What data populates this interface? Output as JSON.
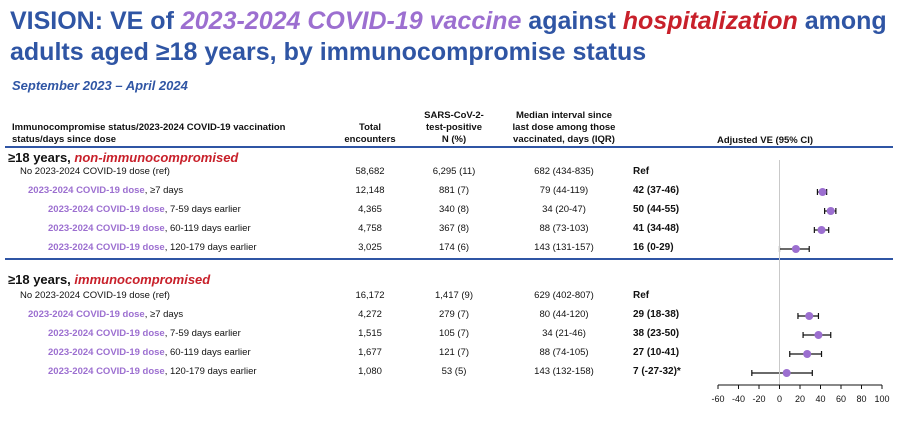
{
  "title": {
    "part1": "VISION: VE of ",
    "part2": "2023-2024 COVID-19 vaccine",
    "part3": " against ",
    "part4": "hospitalization",
    "part5": " among adults aged ≥18 years, by immunocompromise status"
  },
  "subtitle": "September 2023 – April 2024",
  "headers": {
    "status_line1": "Immunocompromise status/2023-2024 COVID-19 vaccination",
    "status_line2": "status/days since dose",
    "total_line1": "Total",
    "total_line2": "encounters",
    "pos_line1": "SARS-CoV-2-",
    "pos_line2": "test-positive",
    "pos_line3": "N (%)",
    "med_line1": "Median interval since",
    "med_line2": "last dose among those",
    "med_line3": "vaccinated, days (IQR)",
    "ve": "Adjusted VE (95% CI)"
  },
  "colors": {
    "blue": "#2f55a4",
    "purple": "#9c6fd0",
    "red": "#c8202a"
  },
  "chart_data": {
    "type": "forest",
    "title": "Adjusted VE (95% CI)",
    "xlim": [
      -60,
      100
    ],
    "xticks": [
      -60,
      -40,
      -20,
      0,
      20,
      40,
      60,
      80,
      100
    ],
    "tick_labels": [
      "-60",
      "-40",
      "-20",
      "0",
      "20",
      "40",
      "60",
      "80",
      "100"
    ],
    "groups": [
      {
        "label_prefix": "≥18 years, ",
        "label_tag": "non-immunocompromised",
        "rows": [
          {
            "dose": "",
            "label": "No 2023-2024 COVID-19 dose (ref)",
            "indent": 0,
            "total": "58,682",
            "pos": "6,295 (11)",
            "median": "682 (434-835)",
            "ve_text": "Ref",
            "ve": null,
            "lo": null,
            "hi": null
          },
          {
            "dose": "2023-2024 COVID-19 dose",
            "label": ", ≥7 days",
            "indent": 1,
            "total": "12,148",
            "pos": "881 (7)",
            "median": "79 (44-119)",
            "ve_text": "42 (37-46)",
            "ve": 42,
            "lo": 37,
            "hi": 46
          },
          {
            "dose": "2023-2024 COVID-19 dose",
            "label": ", 7-59 days earlier",
            "indent": 2,
            "total": "4,365",
            "pos": "340 (8)",
            "median": "34 (20-47)",
            "ve_text": "50 (44-55)",
            "ve": 50,
            "lo": 44,
            "hi": 55
          },
          {
            "dose": "2023-2024 COVID-19 dose",
            "label": ", 60-119 days earlier",
            "indent": 2,
            "total": "4,758",
            "pos": "367 (8)",
            "median": "88 (73-103)",
            "ve_text": "41 (34-48)",
            "ve": 41,
            "lo": 34,
            "hi": 48
          },
          {
            "dose": "2023-2024 COVID-19 dose",
            "label": ", 120-179 days earlier",
            "indent": 2,
            "total": "3,025",
            "pos": "174 (6)",
            "median": "143 (131-157)",
            "ve_text": "16 (0-29)",
            "ve": 16,
            "lo": 0,
            "hi": 29
          }
        ]
      },
      {
        "label_prefix": "≥18 years, ",
        "label_tag": "immunocompromised",
        "rows": [
          {
            "dose": "",
            "label": "No 2023-2024 COVID-19 dose (ref)",
            "indent": 0,
            "total": "16,172",
            "pos": "1,417 (9)",
            "median": "629 (402-807)",
            "ve_text": "Ref",
            "ve": null,
            "lo": null,
            "hi": null
          },
          {
            "dose": "2023-2024 COVID-19 dose",
            "label": ", ≥7 days",
            "indent": 1,
            "total": "4,272",
            "pos": "279 (7)",
            "median": "80 (44-120)",
            "ve_text": "29 (18-38)",
            "ve": 29,
            "lo": 18,
            "hi": 38
          },
          {
            "dose": "2023-2024 COVID-19 dose",
            "label": ", 7-59 days earlier",
            "indent": 2,
            "total": "1,515",
            "pos": "105 (7)",
            "median": "34 (21-46)",
            "ve_text": "38 (23-50)",
            "ve": 38,
            "lo": 23,
            "hi": 50
          },
          {
            "dose": "2023-2024 COVID-19 dose",
            "label": ", 60-119 days earlier",
            "indent": 2,
            "total": "1,677",
            "pos": "121 (7)",
            "median": "88 (74-105)",
            "ve_text": "27 (10-41)",
            "ve": 27,
            "lo": 10,
            "hi": 41
          },
          {
            "dose": "2023-2024 COVID-19 dose",
            "label": ", 120-179 days earlier",
            "indent": 2,
            "total": "1,080",
            "pos": "53 (5)",
            "median": "143 (132-158)",
            "ve_text": "7 (-27-32)*",
            "ve": 7,
            "lo": -27,
            "hi": 32
          }
        ]
      }
    ]
  }
}
